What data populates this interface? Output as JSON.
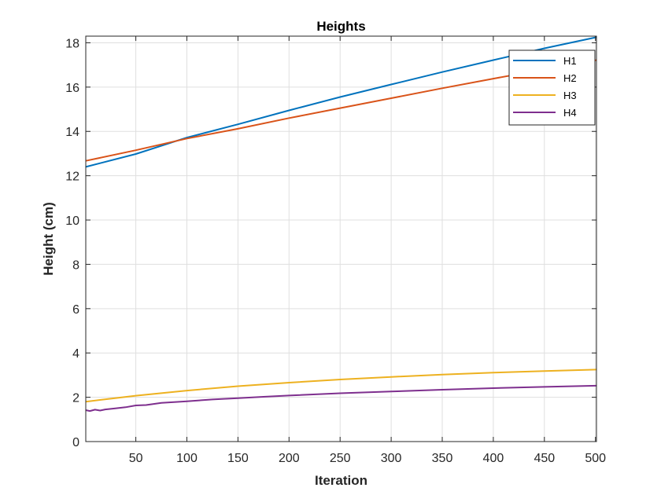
{
  "chart_data": {
    "type": "line",
    "title": "Heights",
    "xlabel": "Iteration",
    "ylabel": "Height (cm)",
    "xlim": [
      1,
      501
    ],
    "ylim": [
      0,
      18.3
    ],
    "xticks": [
      50,
      100,
      150,
      200,
      250,
      300,
      350,
      400,
      450,
      500
    ],
    "yticks": [
      0,
      2,
      4,
      6,
      8,
      10,
      12,
      14,
      16,
      18
    ],
    "grid": true,
    "legend_position": "top-right",
    "series": [
      {
        "name": "H1",
        "color": "#0072BD",
        "x": [
          1,
          50,
          100,
          150,
          200,
          250,
          300,
          350,
          400,
          450,
          501
        ],
        "y": [
          12.4,
          12.98,
          13.72,
          14.32,
          14.95,
          15.55,
          16.12,
          16.68,
          17.22,
          17.75,
          18.25
        ]
      },
      {
        "name": "H2",
        "color": "#D95319",
        "x": [
          1,
          50,
          100,
          150,
          200,
          250,
          300,
          350,
          400,
          450,
          501
        ],
        "y": [
          12.67,
          13.15,
          13.68,
          14.12,
          14.6,
          15.05,
          15.5,
          15.95,
          16.38,
          16.8,
          17.22
        ]
      },
      {
        "name": "H3",
        "color": "#EDB120",
        "x": [
          1,
          50,
          100,
          150,
          200,
          250,
          300,
          350,
          400,
          450,
          501
        ],
        "y": [
          1.8,
          2.07,
          2.3,
          2.5,
          2.66,
          2.8,
          2.92,
          3.02,
          3.11,
          3.18,
          3.25
        ]
      },
      {
        "name": "H4",
        "color": "#7E2F8E",
        "x": [
          1,
          5,
          10,
          15,
          20,
          30,
          40,
          50,
          60,
          75,
          100,
          125,
          150,
          175,
          200,
          250,
          300,
          350,
          400,
          450,
          501
        ],
        "y": [
          1.42,
          1.38,
          1.44,
          1.4,
          1.45,
          1.5,
          1.55,
          1.63,
          1.65,
          1.75,
          1.82,
          1.9,
          1.96,
          2.02,
          2.08,
          2.18,
          2.26,
          2.34,
          2.41,
          2.47,
          2.52
        ]
      }
    ]
  }
}
